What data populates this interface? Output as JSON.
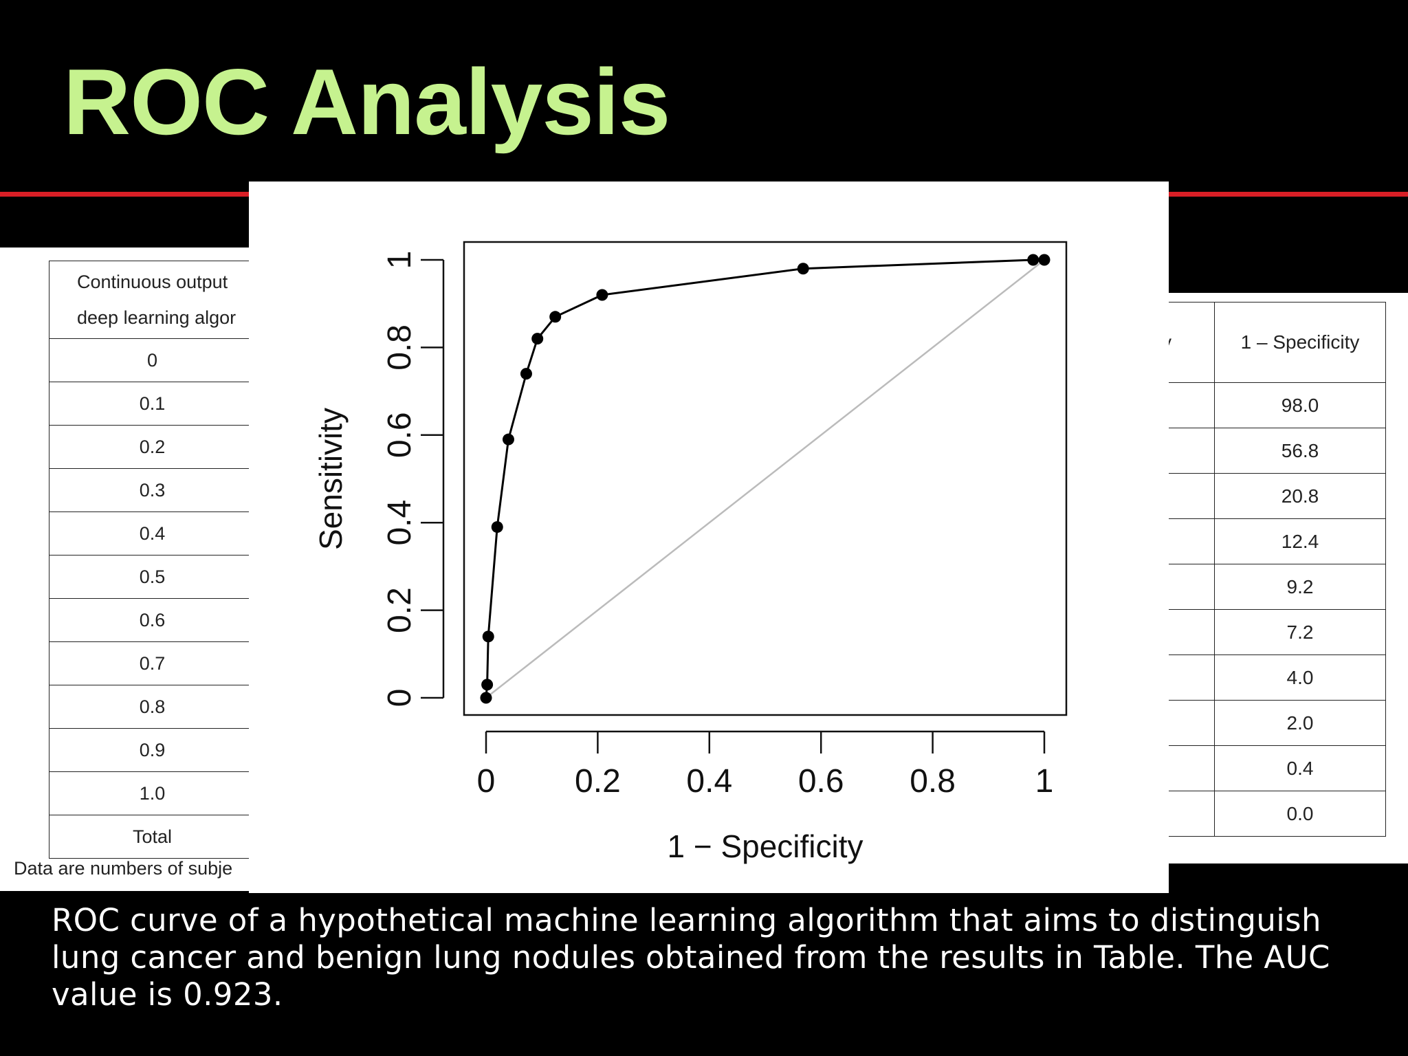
{
  "title": "ROC Analysis",
  "left_table": {
    "header_line1": "Continuous output",
    "header_line2": "deep learning algor",
    "rows": [
      "0",
      "0.1",
      "0.2",
      "0.3",
      "0.4",
      "0.5",
      "0.6",
      "0.7",
      "0.8",
      "0.9",
      "1.0",
      "Total"
    ],
    "note": "Data are numbers of subje"
  },
  "right_table": {
    "header_partial": "y",
    "header": "1 – Specificity",
    "rows": [
      "98.0",
      "56.8",
      "20.8",
      "12.4",
      "9.2",
      "7.2",
      "4.0",
      "2.0",
      "0.4",
      "0.0"
    ]
  },
  "chart_data": {
    "type": "line",
    "xlabel": "1 − Specificity",
    "ylabel": "Sensitivity",
    "xlim": [
      0,
      1
    ],
    "ylim": [
      0,
      1
    ],
    "x_ticks": [
      "0",
      "0.2",
      "0.4",
      "0.6",
      "0.8",
      "1"
    ],
    "y_ticks": [
      "0",
      "0.2",
      "0.4",
      "0.6",
      "0.8",
      "1"
    ],
    "series": [
      {
        "type": "line+points",
        "color": "#000000",
        "points": [
          [
            0,
            0
          ],
          [
            0.002,
            0.03
          ],
          [
            0.004,
            0.14
          ],
          [
            0.02,
            0.39
          ],
          [
            0.04,
            0.59
          ],
          [
            0.072,
            0.74
          ],
          [
            0.092,
            0.82
          ],
          [
            0.124,
            0.87
          ],
          [
            0.208,
            0.92
          ],
          [
            0.568,
            0.98
          ],
          [
            0.98,
            1.0
          ],
          [
            1.0,
            1.0
          ]
        ]
      },
      {
        "type": "reference",
        "color": "#bbbbbb",
        "points": [
          [
            0,
            0
          ],
          [
            1,
            1
          ]
        ]
      }
    ]
  },
  "caption": "ROC curve of a hypothetical machine learning algorithm that aims to distinguish lung cancer and benign lung nodules obtained from the results in Table. The AUC value is 0.923."
}
